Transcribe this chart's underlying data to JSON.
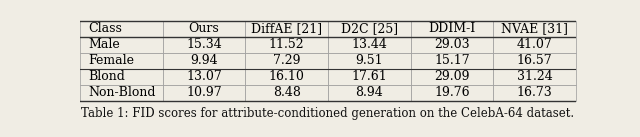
{
  "columns": [
    "Class",
    "Ours",
    "DiffAE [21]",
    "D2C [25]",
    "DDIM-I",
    "NVAE [31]"
  ],
  "rows": [
    [
      "Male",
      "15.34",
      "11.52",
      "13.44",
      "29.03",
      "41.07"
    ],
    [
      "Female",
      "9.94",
      "7.29",
      "9.51",
      "15.17",
      "16.57"
    ],
    [
      "Blond",
      "13.07",
      "16.10",
      "17.61",
      "29.09",
      "31.24"
    ],
    [
      "Non-Blond",
      "10.97",
      "8.48",
      "8.94",
      "19.76",
      "16.73"
    ]
  ],
  "caption": "Table 1: FID scores for attribute-conditioned generation on the CelebA-64 dataset.",
  "background_color": "#f0ede4",
  "font_size": 9.0,
  "caption_font_size": 8.5
}
